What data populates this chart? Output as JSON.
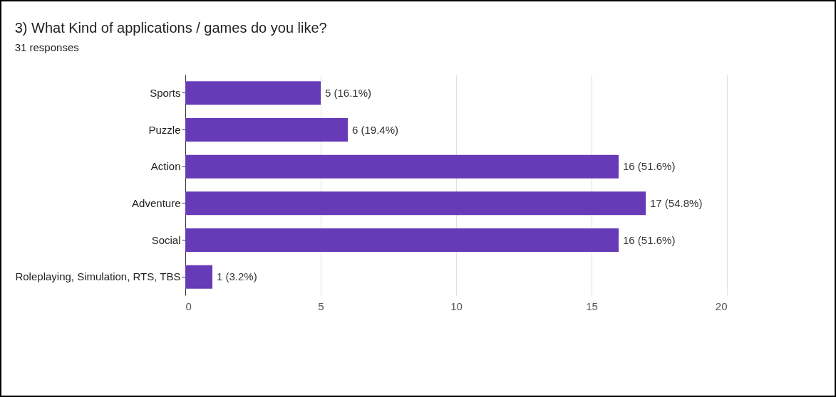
{
  "chart_data": {
    "type": "bar",
    "orientation": "horizontal",
    "title": "3) What Kind of applications / games do you like?",
    "subtitle": "31 responses",
    "categories": [
      "Sports",
      "Puzzle",
      "Action",
      "Adventure",
      "Social",
      "Roleplaying, Simulation, RTS, TBS"
    ],
    "values": [
      5,
      6,
      16,
      17,
      16,
      1
    ],
    "value_labels": [
      "5 (16.1%)",
      "6 (19.4%)",
      "16 (51.6%)",
      "17 (54.8%)",
      "16 (51.6%)",
      "1 (3.2%)"
    ],
    "color": "#673ab7",
    "xlim": [
      0,
      20
    ],
    "xticks": [
      0,
      5,
      10,
      15,
      20
    ],
    "grid": "x"
  }
}
